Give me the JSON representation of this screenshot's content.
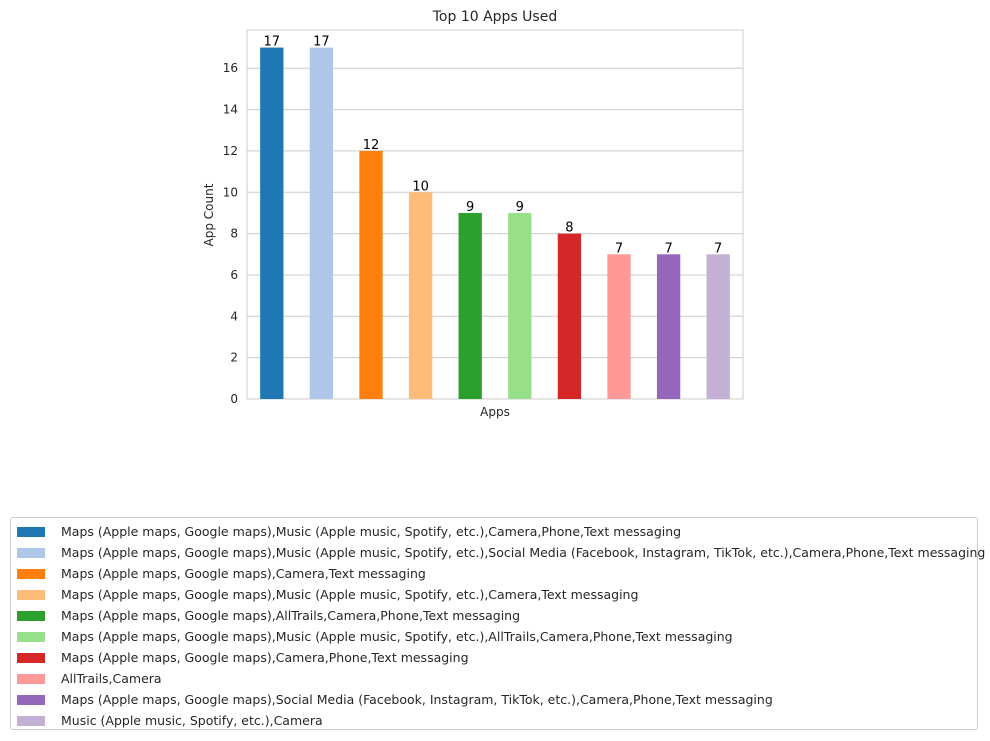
{
  "chart_data": {
    "type": "bar",
    "title": "Top 10 Apps Used",
    "xlabel": "Apps",
    "ylabel": "App Count",
    "ylim": [
      0,
      17.85
    ],
    "yticks": [
      0,
      2,
      4,
      6,
      8,
      10,
      12,
      14,
      16
    ],
    "grid": "horizontal",
    "legend_position": "bottom",
    "categories": [
      "Maps (Apple maps, Google maps),Music (Apple music, Spotify, etc.),Camera,Phone,Text messaging",
      "Maps (Apple maps, Google maps),Music (Apple music, Spotify, etc.),Social Media (Facebook, Instagram, TikTok, etc.),Camera,Phone,Text messaging",
      "Maps (Apple maps, Google maps),Camera,Text messaging",
      "Maps (Apple maps, Google maps),Music (Apple music, Spotify, etc.),Camera,Text messaging",
      "Maps (Apple maps, Google maps),AllTrails,Camera,Phone,Text messaging",
      "Maps (Apple maps, Google maps),Music (Apple music, Spotify, etc.),AllTrails,Camera,Phone,Text messaging",
      "Maps (Apple maps, Google maps),Camera,Phone,Text messaging",
      "AllTrails,Camera",
      "Maps (Apple maps, Google maps),Social Media (Facebook, Instagram, TikTok, etc.),Camera,Phone,Text messaging",
      "Music (Apple music, Spotify, etc.),Camera"
    ],
    "values": [
      17,
      17,
      12,
      10,
      9,
      9,
      8,
      7,
      7,
      7
    ],
    "colors": [
      "#1f77b4",
      "#aec7e8",
      "#ff7f0e",
      "#ffbb78",
      "#2ca02c",
      "#98df8a",
      "#d62728",
      "#ff9896",
      "#9467bd",
      "#c5b0d5"
    ]
  }
}
